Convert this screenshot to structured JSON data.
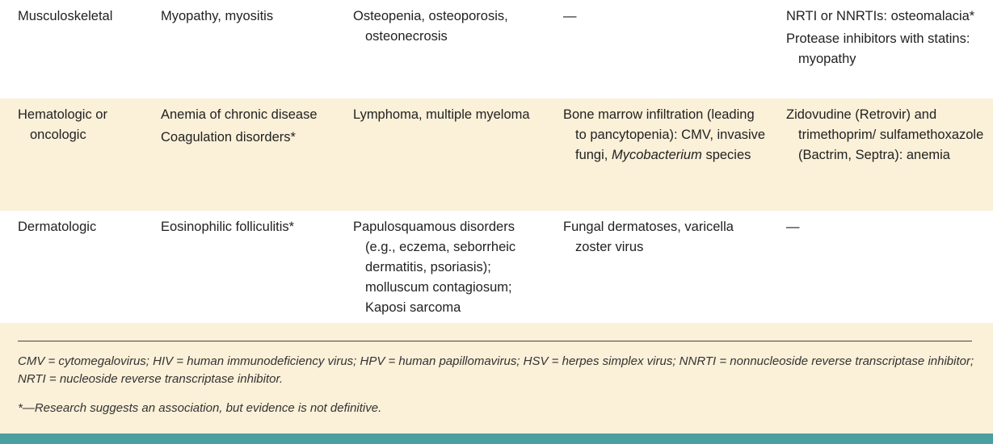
{
  "rows": [
    {
      "system": "Musculoskeletal",
      "col2": [
        "Myopathy, myositis"
      ],
      "col3": [
        "Osteopenia, osteoporosis, osteonecrosis"
      ],
      "col4": [
        "—"
      ],
      "col5": [
        "NRTI or NNRTIs: osteomalacia*",
        "Protease inhibitors with statins: myopathy"
      ]
    },
    {
      "system": "Hematologic or oncologic",
      "col2": [
        "Anemia of chronic disease",
        "Coagulation disorders*"
      ],
      "col3": [
        "Lymphoma, multiple myeloma"
      ],
      "col4_prefix": "Bone marrow infiltration (leading to pancytopenia): CMV, invasive fungi,",
      "col4_italic": "Mycobacterium",
      "col4_suffix": "species",
      "col5": [
        "Zidovudine (Retrovir) and trimethoprim/ sulfamethoxazole (Bactrim, Septra): anemia"
      ]
    },
    {
      "system": "Dermatologic",
      "col2": [
        "Eosinophilic folliculitis*"
      ],
      "col3": [
        "Papulosquamous disorders (e.g., eczema, seborrheic dermatitis, psoriasis); molluscum contagiosum; Kaposi sarcoma"
      ],
      "col4": [
        "Fungal dermatoses, varicella zoster virus"
      ],
      "col5": [
        "—"
      ]
    }
  ],
  "footnotes": {
    "abbreviations": "CMV = cytomegalovirus; HIV = human immunodeficiency virus; HPV = human papillomavirus; HSV = herpes simplex virus; NNRTI = nonnucleoside reverse transcriptase inhibitor; NRTI = nucleoside reverse transcriptase inhibitor.",
    "asterisk": "*—Research suggests an association, but evidence is not definitive."
  },
  "colors": {
    "row_tint": "#fbf0d8",
    "bottom_bar": "#4b9fa0"
  }
}
